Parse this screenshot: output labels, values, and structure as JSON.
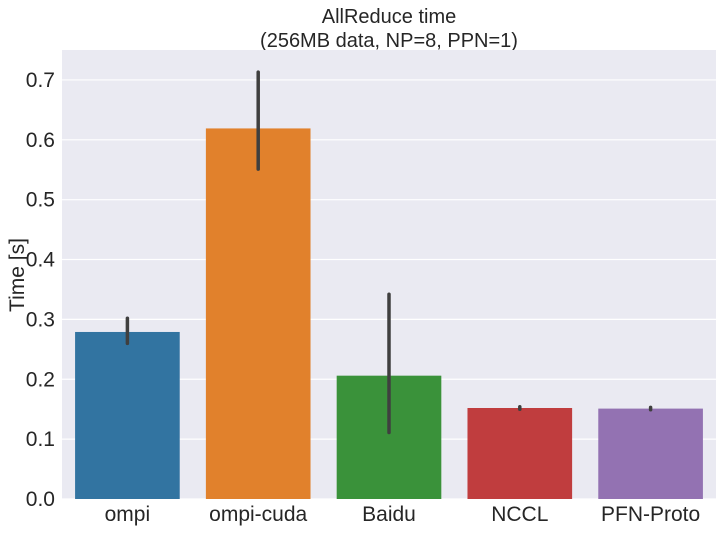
{
  "chart_data": {
    "type": "bar",
    "title": [
      "AllReduce time",
      "(256MB data, NP=8, PPN=1)"
    ],
    "ylabel": "Time [s]",
    "xlabel": "",
    "categories": [
      "ompi",
      "ompi-cuda",
      "Baidu",
      "NCCL",
      "PFN-Proto"
    ],
    "values": [
      0.279,
      0.619,
      0.206,
      0.152,
      0.151
    ],
    "error_low": [
      0.26,
      0.551,
      0.111,
      0.15,
      0.149
    ],
    "error_high": [
      0.302,
      0.713,
      0.342,
      0.154,
      0.153
    ],
    "colors": [
      "#3274a1",
      "#e1812c",
      "#3a923a",
      "#c03d3e",
      "#9372b2"
    ],
    "ylim": [
      0,
      0.75
    ],
    "yticks": [
      0.0,
      0.1,
      0.2,
      0.3,
      0.4,
      0.5,
      0.6,
      0.7
    ],
    "ytick_labels": [
      "0.0",
      "0.1",
      "0.2",
      "0.3",
      "0.4",
      "0.5",
      "0.6",
      "0.7"
    ],
    "grid": true,
    "background": "#eaeaf2",
    "error_color": "#3f3f3f"
  }
}
